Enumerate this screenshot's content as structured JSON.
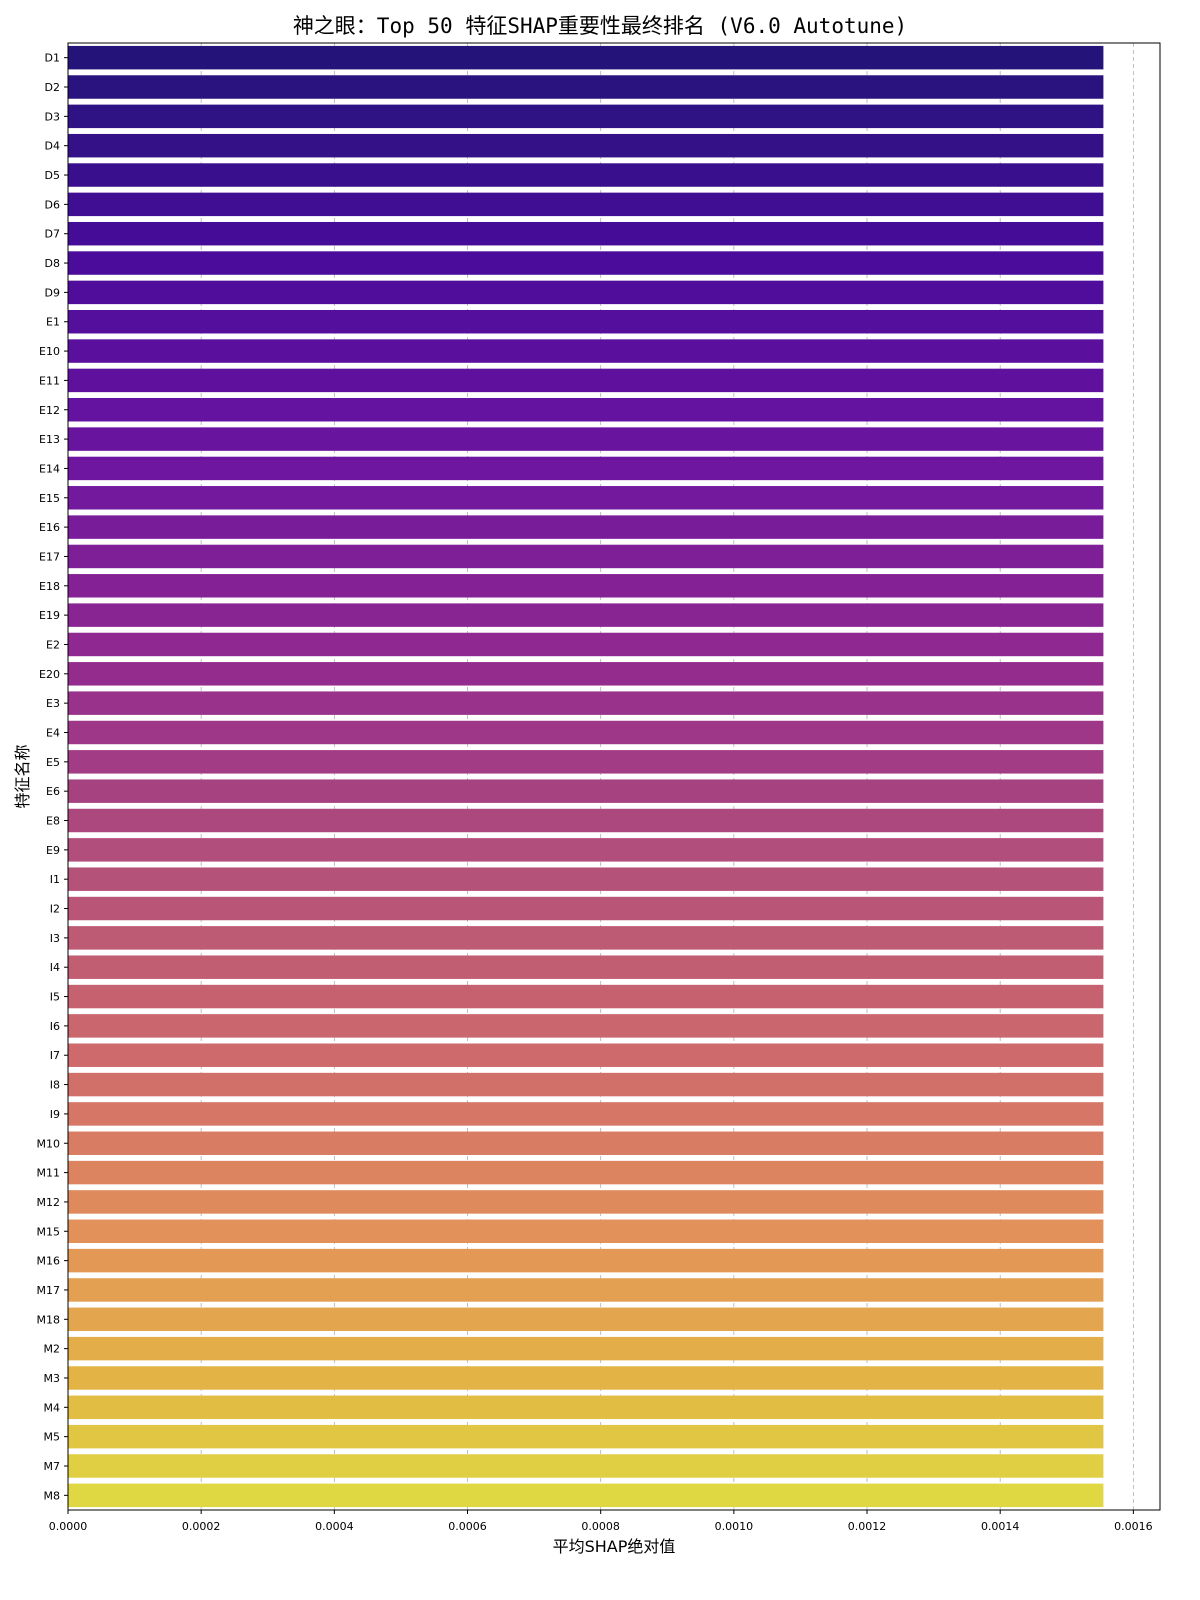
{
  "chart_data": {
    "type": "bar",
    "orientation": "horizontal",
    "title": "神之眼：Top 50 特征SHAP重要性最终排名 (V6.0 Autotune)",
    "xlabel": "平均SHAP绝对值",
    "ylabel": "特征名称",
    "xlim": [
      0,
      0.00164
    ],
    "xticks": [
      "0.0000",
      "0.0002",
      "0.0004",
      "0.0006",
      "0.0008",
      "0.0010",
      "0.0012",
      "0.0014",
      "0.0016"
    ],
    "grid": "x-dashed",
    "colormap": "plasma",
    "categories": [
      "D1",
      "D2",
      "D3",
      "D4",
      "D5",
      "D6",
      "D7",
      "D8",
      "D9",
      "E1",
      "E10",
      "E11",
      "E12",
      "E13",
      "E14",
      "E15",
      "E16",
      "E17",
      "E18",
      "E19",
      "E2",
      "E20",
      "E3",
      "E4",
      "E5",
      "E6",
      "E8",
      "E9",
      "I1",
      "I2",
      "I3",
      "I4",
      "I5",
      "I6",
      "I7",
      "I8",
      "I9",
      "M10",
      "M11",
      "M12",
      "M15",
      "M16",
      "M17",
      "M18",
      "M2",
      "M3",
      "M4",
      "M5",
      "M7",
      "M8"
    ],
    "values": [
      0.001555,
      0.001555,
      0.001555,
      0.001555,
      0.001555,
      0.001555,
      0.001555,
      0.001555,
      0.001555,
      0.001555,
      0.001555,
      0.001555,
      0.001555,
      0.001555,
      0.001555,
      0.001555,
      0.001555,
      0.001555,
      0.001555,
      0.001555,
      0.001555,
      0.001555,
      0.001555,
      0.001555,
      0.001555,
      0.001555,
      0.001555,
      0.001555,
      0.001555,
      0.001555,
      0.001555,
      0.001555,
      0.001555,
      0.001555,
      0.001555,
      0.001555,
      0.001555,
      0.001555,
      0.001555,
      0.001555,
      0.001555,
      0.001555,
      0.001555,
      0.001555,
      0.001555,
      0.001555,
      0.001555,
      0.001555,
      0.001555,
      0.001555
    ],
    "color_start": "#241479",
    "color_end": "#dfd842"
  }
}
